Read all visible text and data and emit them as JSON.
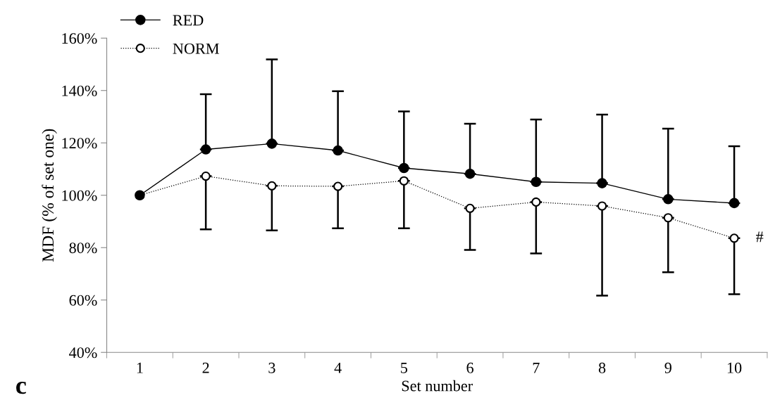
{
  "chart_data": {
    "type": "line",
    "xlabel": "Set number",
    "ylabel": "MDF (% of set one)",
    "categories": [
      "1",
      "2",
      "3",
      "4",
      "5",
      "6",
      "7",
      "8",
      "9",
      "10"
    ],
    "series": [
      {
        "name": "RED",
        "color": "#000000",
        "marker": "circle",
        "line_style": "solid",
        "values": [
          100,
          117.5,
          119.7,
          117.1,
          110.4,
          108.2,
          105.1,
          104.6,
          98.5,
          97.0
        ],
        "errors": [
          null,
          [
            117.5,
            138.6
          ],
          [
            119.7,
            151.9
          ],
          [
            117.1,
            139.7
          ],
          [
            110.4,
            132.0
          ],
          [
            108.2,
            127.3
          ],
          [
            105.1,
            128.9
          ],
          [
            104.6,
            130.8
          ],
          [
            98.5,
            125.4
          ],
          [
            97.0,
            118.7
          ]
        ]
      },
      {
        "name": "NORM",
        "color": "#000000",
        "marker": "circle",
        "line_style": "dotted",
        "values": [
          100,
          107.3,
          103.6,
          103.4,
          105.5,
          95.0,
          97.4,
          95.9,
          91.4,
          83.6
        ],
        "errors": [
          null,
          [
            87.0,
            107.3
          ],
          [
            86.6,
            103.6
          ],
          [
            87.4,
            103.4
          ],
          [
            87.4,
            105.5
          ],
          [
            79.1,
            95.0
          ],
          [
            77.8,
            97.4
          ],
          [
            61.7,
            95.9
          ],
          [
            70.6,
            91.4
          ],
          [
            62.2,
            83.6
          ]
        ]
      }
    ],
    "ylim": [
      40,
      160
    ],
    "yticks": [
      {
        "value": 40,
        "label": "40%"
      },
      {
        "value": 60,
        "label": "60%"
      },
      {
        "value": 80,
        "label": "80%"
      },
      {
        "value": 100,
        "label": "100%"
      },
      {
        "value": 120,
        "label": "120%"
      },
      {
        "value": 140,
        "label": "140%"
      },
      {
        "value": 160,
        "label": "160%"
      }
    ],
    "grid": false,
    "legend": "top left",
    "annotations": [
      {
        "text": "#",
        "x": "10",
        "y": 83.6
      },
      "c"
    ]
  }
}
